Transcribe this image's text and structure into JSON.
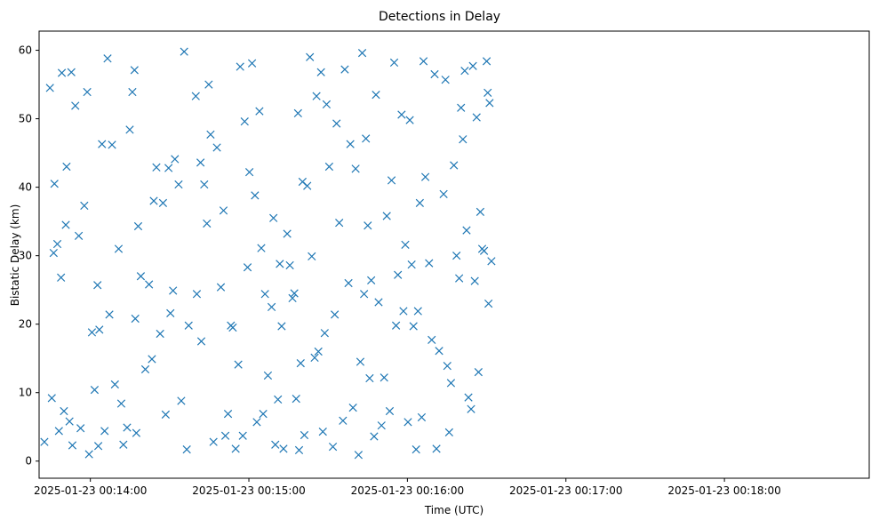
{
  "chart_data": {
    "type": "scatter",
    "title": "Detections in Delay",
    "xlabel": "Time (UTC)",
    "ylabel": "Bistatic Delay (km)",
    "marker": "x",
    "color": "#1f77b4",
    "grid": false,
    "x_ticks": [
      {
        "value": "2025-01-23 00:14:00",
        "label": "2025-01-23 00:14:00"
      },
      {
        "value": "2025-01-23 00:15:00",
        "label": "2025-01-23 00:15:00"
      },
      {
        "value": "2025-01-23 00:16:00",
        "label": "2025-01-23 00:16:00"
      },
      {
        "value": "2025-01-23 00:17:00",
        "label": "2025-01-23 00:17:00"
      },
      {
        "value": "2025-01-23 00:18:00",
        "label": "2025-01-23 00:18:00"
      }
    ],
    "y_ticks": [
      0,
      10,
      20,
      30,
      40,
      50,
      60
    ],
    "xlim": [
      "2025-01-23 00:13:40.6",
      "2025-01-23 00:18:54.8"
    ],
    "ylim": [
      -2.5,
      62.8
    ],
    "points": [
      {
        "x": "00:13:42.6",
        "y": 2.8
      },
      {
        "x": "00:13:44.7",
        "y": 54.5
      },
      {
        "x": "00:13:45.4",
        "y": 9.2
      },
      {
        "x": "00:13:46.1",
        "y": 30.4
      },
      {
        "x": "00:13:46.4",
        "y": 40.5
      },
      {
        "x": "00:13:47.5",
        "y": 31.7
      },
      {
        "x": "00:13:48.1",
        "y": 4.4
      },
      {
        "x": "00:13:48.9",
        "y": 26.8
      },
      {
        "x": "00:13:49.2",
        "y": 56.7
      },
      {
        "x": "00:13:50.0",
        "y": 7.3
      },
      {
        "x": "00:13:50.7",
        "y": 34.5
      },
      {
        "x": "00:13:51.0",
        "y": 43.0
      },
      {
        "x": "00:13:52.1",
        "y": 5.8
      },
      {
        "x": "00:13:52.8",
        "y": 56.8
      },
      {
        "x": "00:13:53.2",
        "y": 2.3
      },
      {
        "x": "00:13:54.3",
        "y": 51.9
      },
      {
        "x": "00:13:55.6",
        "y": 32.9
      },
      {
        "x": "00:13:56.3",
        "y": 4.8
      },
      {
        "x": "00:13:57.7",
        "y": 37.3
      },
      {
        "x": "00:13:58.8",
        "y": 53.9
      },
      {
        "x": "00:13:59.5",
        "y": 1.0
      },
      {
        "x": "00:14:00.6",
        "y": 18.8
      },
      {
        "x": "00:14:01.6",
        "y": 10.4
      },
      {
        "x": "00:14:02.7",
        "y": 25.7
      },
      {
        "x": "00:14:03.0",
        "y": 2.2
      },
      {
        "x": "00:14:03.4",
        "y": 19.2
      },
      {
        "x": "00:14:04.4",
        "y": 46.3
      },
      {
        "x": "00:14:05.4",
        "y": 4.4
      },
      {
        "x": "00:14:06.5",
        "y": 58.8
      },
      {
        "x": "00:14:07.2",
        "y": 21.4
      },
      {
        "x": "00:14:08.2",
        "y": 46.2
      },
      {
        "x": "00:14:09.3",
        "y": 11.2
      },
      {
        "x": "00:14:10.7",
        "y": 31.0
      },
      {
        "x": "00:14:11.7",
        "y": 8.4
      },
      {
        "x": "00:14:12.5",
        "y": 2.4
      },
      {
        "x": "00:14:13.9",
        "y": 4.9
      },
      {
        "x": "00:14:14.9",
        "y": 48.4
      },
      {
        "x": "00:14:15.9",
        "y": 53.9
      },
      {
        "x": "00:14:16.7",
        "y": 57.1
      },
      {
        "x": "00:14:17.0",
        "y": 20.8
      },
      {
        "x": "00:14:17.4",
        "y": 4.1
      },
      {
        "x": "00:14:18.1",
        "y": 34.3
      },
      {
        "x": "00:14:19.1",
        "y": 27.0
      },
      {
        "x": "00:14:20.8",
        "y": 13.4
      },
      {
        "x": "00:14:22.2",
        "y": 25.8
      },
      {
        "x": "00:14:23.3",
        "y": 14.9
      },
      {
        "x": "00:14:24.0",
        "y": 38.0
      },
      {
        "x": "00:14:25.0",
        "y": 42.9
      },
      {
        "x": "00:14:26.4",
        "y": 18.6
      },
      {
        "x": "00:14:27.5",
        "y": 37.7
      },
      {
        "x": "00:14:28.5",
        "y": 6.8
      },
      {
        "x": "00:14:29.6",
        "y": 42.8
      },
      {
        "x": "00:14:30.3",
        "y": 21.6
      },
      {
        "x": "00:14:31.3",
        "y": 24.9
      },
      {
        "x": "00:14:32.0",
        "y": 44.1
      },
      {
        "x": "00:14:33.4",
        "y": 40.4
      },
      {
        "x": "00:14:34.4",
        "y": 8.8
      },
      {
        "x": "00:14:35.5",
        "y": 59.8
      },
      {
        "x": "00:14:36.5",
        "y": 1.7
      },
      {
        "x": "00:14:37.2",
        "y": 19.8
      },
      {
        "x": "00:14:39.9",
        "y": 53.3
      },
      {
        "x": "00:14:40.3",
        "y": 24.4
      },
      {
        "x": "00:14:41.7",
        "y": 43.6
      },
      {
        "x": "00:14:42.0",
        "y": 17.5
      },
      {
        "x": "00:14:43.1",
        "y": 40.4
      },
      {
        "x": "00:14:44.1",
        "y": 34.7
      },
      {
        "x": "00:14:44.8",
        "y": 55.0
      },
      {
        "x": "00:14:45.5",
        "y": 47.7
      },
      {
        "x": "00:14:46.6",
        "y": 2.8
      },
      {
        "x": "00:14:47.9",
        "y": 45.8
      },
      {
        "x": "00:14:49.4",
        "y": 25.4
      },
      {
        "x": "00:14:50.4",
        "y": 36.6
      },
      {
        "x": "00:14:51.1",
        "y": 3.7
      },
      {
        "x": "00:14:52.1",
        "y": 6.9
      },
      {
        "x": "00:14:53.2",
        "y": 19.8
      },
      {
        "x": "00:14:53.9",
        "y": 19.5
      },
      {
        "x": "00:14:55.0",
        "y": 1.8
      },
      {
        "x": "00:14:56.0",
        "y": 14.1
      },
      {
        "x": "00:14:56.7",
        "y": 57.6
      },
      {
        "x": "00:14:57.7",
        "y": 3.7
      },
      {
        "x": "00:14:58.4",
        "y": 49.6
      },
      {
        "x": "00:14:59.5",
        "y": 28.3
      },
      {
        "x": "00:15:00.2",
        "y": 42.2
      },
      {
        "x": "00:15:01.2",
        "y": 58.1
      },
      {
        "x": "00:15:02.3",
        "y": 38.8
      },
      {
        "x": "00:15:03.0",
        "y": 5.7
      },
      {
        "x": "00:15:04.0",
        "y": 51.1
      },
      {
        "x": "00:15:04.7",
        "y": 31.1
      },
      {
        "x": "00:15:05.4",
        "y": 6.9
      },
      {
        "x": "00:15:06.1",
        "y": 24.4
      },
      {
        "x": "00:15:07.2",
        "y": 12.5
      },
      {
        "x": "00:15:08.6",
        "y": 22.5
      },
      {
        "x": "00:15:09.3",
        "y": 35.5
      },
      {
        "x": "00:15:10.0",
        "y": 2.4
      },
      {
        "x": "00:15:11.0",
        "y": 9.0
      },
      {
        "x": "00:15:11.7",
        "y": 28.8
      },
      {
        "x": "00:15:12.4",
        "y": 19.7
      },
      {
        "x": "00:15:13.1",
        "y": 1.8
      },
      {
        "x": "00:15:14.5",
        "y": 33.2
      },
      {
        "x": "00:15:15.5",
        "y": 28.6
      },
      {
        "x": "00:15:16.5",
        "y": 23.8
      },
      {
        "x": "00:15:17.2",
        "y": 24.5
      },
      {
        "x": "00:15:17.9",
        "y": 9.1
      },
      {
        "x": "00:15:18.6",
        "y": 50.8
      },
      {
        "x": "00:15:19.0",
        "y": 1.6
      },
      {
        "x": "00:15:19.6",
        "y": 14.3
      },
      {
        "x": "00:15:20.3",
        "y": 40.8
      },
      {
        "x": "00:15:21.0",
        "y": 3.8
      },
      {
        "x": "00:15:22.1",
        "y": 40.2
      },
      {
        "x": "00:15:23.1",
        "y": 59.0
      },
      {
        "x": "00:15:23.8",
        "y": 29.9
      },
      {
        "x": "00:15:24.9",
        "y": 15.1
      },
      {
        "x": "00:15:25.6",
        "y": 53.3
      },
      {
        "x": "00:15:26.3",
        "y": 16.0
      },
      {
        "x": "00:15:27.3",
        "y": 56.8
      },
      {
        "x": "00:15:28.0",
        "y": 4.3
      },
      {
        "x": "00:15:28.7",
        "y": 18.7
      },
      {
        "x": "00:15:29.4",
        "y": 52.1
      },
      {
        "x": "00:15:30.4",
        "y": 43.0
      },
      {
        "x": "00:15:31.8",
        "y": 2.1
      },
      {
        "x": "00:15:32.5",
        "y": 21.4
      },
      {
        "x": "00:15:33.2",
        "y": 49.3
      },
      {
        "x": "00:15:34.2",
        "y": 34.8
      },
      {
        "x": "00:15:35.6",
        "y": 5.9
      },
      {
        "x": "00:15:36.3",
        "y": 57.2
      },
      {
        "x": "00:15:37.7",
        "y": 26.0
      },
      {
        "x": "00:15:38.4",
        "y": 46.3
      },
      {
        "x": "00:15:39.4",
        "y": 7.8
      },
      {
        "x": "00:15:40.4",
        "y": 42.7
      },
      {
        "x": "00:15:41.5",
        "y": 0.9
      },
      {
        "x": "00:15:42.2",
        "y": 14.5
      },
      {
        "x": "00:15:42.9",
        "y": 59.6
      },
      {
        "x": "00:15:43.6",
        "y": 24.4
      },
      {
        "x": "00:15:44.3",
        "y": 47.1
      },
      {
        "x": "00:15:45.0",
        "y": 34.4
      },
      {
        "x": "00:15:45.7",
        "y": 12.1
      },
      {
        "x": "00:15:46.3",
        "y": 26.4
      },
      {
        "x": "00:15:47.4",
        "y": 3.6
      },
      {
        "x": "00:15:48.1",
        "y": 53.5
      },
      {
        "x": "00:15:49.1",
        "y": 23.2
      },
      {
        "x": "00:15:50.2",
        "y": 5.2
      },
      {
        "x": "00:15:51.2",
        "y": 12.2
      },
      {
        "x": "00:15:52.2",
        "y": 35.8
      },
      {
        "x": "00:15:53.3",
        "y": 7.3
      },
      {
        "x": "00:15:54.0",
        "y": 41.0
      },
      {
        "x": "00:15:55.0",
        "y": 58.2
      },
      {
        "x": "00:15:55.7",
        "y": 19.8
      },
      {
        "x": "00:15:56.4",
        "y": 27.2
      },
      {
        "x": "00:15:57.8",
        "y": 50.6
      },
      {
        "x": "00:15:58.5",
        "y": 21.9
      },
      {
        "x": "00:15:59.2",
        "y": 31.6
      },
      {
        "x": "00:16:00.2",
        "y": 5.7
      },
      {
        "x": "00:16:00.9",
        "y": 49.8
      },
      {
        "x": "00:16:01.6",
        "y": 28.7
      },
      {
        "x": "00:16:02.3",
        "y": 19.7
      },
      {
        "x": "00:16:03.3",
        "y": 1.7
      },
      {
        "x": "00:16:04.0",
        "y": 21.9
      },
      {
        "x": "00:16:04.7",
        "y": 37.7
      },
      {
        "x": "00:16:05.4",
        "y": 6.4
      },
      {
        "x": "00:16:06.1",
        "y": 58.4
      },
      {
        "x": "00:16:06.8",
        "y": 41.5
      },
      {
        "x": "00:16:08.2",
        "y": 28.9
      },
      {
        "x": "00:16:09.2",
        "y": 17.7
      },
      {
        "x": "00:16:10.3",
        "y": 56.5
      },
      {
        "x": "00:16:11.0",
        "y": 1.8
      },
      {
        "x": "00:16:12.0",
        "y": 16.1
      },
      {
        "x": "00:16:13.7",
        "y": 39.0
      },
      {
        "x": "00:16:14.4",
        "y": 55.7
      },
      {
        "x": "00:16:15.1",
        "y": 13.9
      },
      {
        "x": "00:16:15.8",
        "y": 4.2
      },
      {
        "x": "00:16:16.5",
        "y": 11.4
      },
      {
        "x": "00:16:17.6",
        "y": 43.2
      },
      {
        "x": "00:16:18.6",
        "y": 30.0
      },
      {
        "x": "00:16:19.6",
        "y": 26.7
      },
      {
        "x": "00:16:20.3",
        "y": 51.6
      },
      {
        "x": "00:16:21.0",
        "y": 47.0
      },
      {
        "x": "00:16:21.7",
        "y": 57.0
      },
      {
        "x": "00:16:22.4",
        "y": 33.7
      },
      {
        "x": "00:16:23.1",
        "y": 9.3
      },
      {
        "x": "00:16:24.1",
        "y": 7.6
      },
      {
        "x": "00:16:24.8",
        "y": 57.7
      },
      {
        "x": "00:16:25.5",
        "y": 26.3
      },
      {
        "x": "00:16:26.2",
        "y": 50.2
      },
      {
        "x": "00:16:26.9",
        "y": 13.0
      },
      {
        "x": "00:16:27.6",
        "y": 36.4
      },
      {
        "x": "00:16:28.3",
        "y": 31.0
      },
      {
        "x": "00:16:29.0",
        "y": 30.7
      },
      {
        "x": "00:16:30.0",
        "y": 58.4
      },
      {
        "x": "00:16:30.4",
        "y": 53.8
      },
      {
        "x": "00:16:30.7",
        "y": 23.0
      },
      {
        "x": "00:16:31.1",
        "y": 52.3
      },
      {
        "x": "00:16:31.8",
        "y": 29.2
      }
    ]
  }
}
